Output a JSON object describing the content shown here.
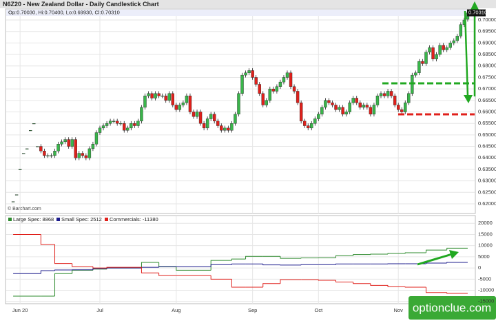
{
  "chart_data": [
    {
      "type": "candlestick",
      "title": "N6Z20 - New Zealand Dollar - Daily Candlestick Chart",
      "info": "Op:0.70030, Hi:0.70400, Lo:0.69930, Cl:0.70310",
      "last_price_label": "0.70310",
      "source": "© Barchart.com",
      "up_color": "#39b54a",
      "down_color": "#e0201b",
      "ylim": [
        0.617,
        0.7045
      ],
      "yticks": [
        {
          "value": 0.62,
          "label": "0.62000"
        },
        {
          "value": 0.625,
          "label": "0.62500"
        },
        {
          "value": 0.63,
          "label": "0.63000"
        },
        {
          "value": 0.635,
          "label": "0.63500"
        },
        {
          "value": 0.64,
          "label": "0.64000"
        },
        {
          "value": 0.645,
          "label": "0.64500"
        },
        {
          "value": 0.65,
          "label": "0.65000"
        },
        {
          "value": 0.655,
          "label": "0.65500"
        },
        {
          "value": 0.66,
          "label": "0.66000"
        },
        {
          "value": 0.665,
          "label": "0.66500"
        },
        {
          "value": 0.67,
          "label": "0.67000"
        },
        {
          "value": 0.675,
          "label": "0.67500"
        },
        {
          "value": 0.68,
          "label": "0.68000"
        },
        {
          "value": 0.685,
          "label": "0.68500"
        },
        {
          "value": 0.69,
          "label": "0.69000"
        },
        {
          "value": 0.695,
          "label": "0.69500"
        },
        {
          "value": 0.7,
          "label": "0.70000"
        }
      ],
      "grid": true,
      "candles": [
        [
          0.621,
          0.621,
          0.621,
          0.621
        ],
        [
          0.624,
          0.624,
          0.624,
          0.624
        ],
        [
          0.635,
          0.635,
          0.635,
          0.635
        ],
        [
          0.642,
          0.642,
          0.642,
          0.642
        ],
        [
          0.644,
          0.644,
          0.644,
          0.644
        ],
        [
          0.652,
          0.652,
          0.652,
          0.652
        ],
        [
          0.655,
          0.655,
          0.655,
          0.655
        ],
        [
          0.645,
          0.645,
          0.645,
          0.645
        ],
        [
          0.645,
          0.646,
          0.642,
          0.643
        ],
        [
          0.643,
          0.644,
          0.64,
          0.641
        ],
        [
          0.641,
          0.642,
          0.64,
          0.641
        ],
        [
          0.641,
          0.642,
          0.64,
          0.641
        ],
        [
          0.641,
          0.644,
          0.64,
          0.643
        ],
        [
          0.643,
          0.647,
          0.642,
          0.646
        ],
        [
          0.646,
          0.648,
          0.645,
          0.647
        ],
        [
          0.647,
          0.649,
          0.646,
          0.648
        ],
        [
          0.648,
          0.649,
          0.644,
          0.645
        ],
        [
          0.645,
          0.649,
          0.644,
          0.648
        ],
        [
          0.648,
          0.649,
          0.639,
          0.64
        ],
        [
          0.64,
          0.643,
          0.639,
          0.642
        ],
        [
          0.642,
          0.643,
          0.64,
          0.641
        ],
        [
          0.641,
          0.642,
          0.639,
          0.64
        ],
        [
          0.64,
          0.645,
          0.639,
          0.644
        ],
        [
          0.644,
          0.647,
          0.643,
          0.646
        ],
        [
          0.646,
          0.652,
          0.645,
          0.651
        ],
        [
          0.651,
          0.654,
          0.65,
          0.653
        ],
        [
          0.653,
          0.655,
          0.652,
          0.654
        ],
        [
          0.654,
          0.656,
          0.653,
          0.655
        ],
        [
          0.655,
          0.657,
          0.654,
          0.656
        ],
        [
          0.656,
          0.657,
          0.655,
          0.656
        ],
        [
          0.656,
          0.657,
          0.654,
          0.655
        ],
        [
          0.655,
          0.656,
          0.654,
          0.655
        ],
        [
          0.655,
          0.656,
          0.651,
          0.652
        ],
        [
          0.652,
          0.654,
          0.651,
          0.653
        ],
        [
          0.653,
          0.656,
          0.652,
          0.655
        ],
        [
          0.655,
          0.656,
          0.653,
          0.654
        ],
        [
          0.654,
          0.657,
          0.653,
          0.656
        ],
        [
          0.656,
          0.663,
          0.655,
          0.662
        ],
        [
          0.662,
          0.668,
          0.661,
          0.667
        ],
        [
          0.667,
          0.669,
          0.666,
          0.668
        ],
        [
          0.668,
          0.669,
          0.665,
          0.666
        ],
        [
          0.666,
          0.669,
          0.665,
          0.668
        ],
        [
          0.668,
          0.669,
          0.666,
          0.667
        ],
        [
          0.667,
          0.668,
          0.666,
          0.667
        ],
        [
          0.667,
          0.668,
          0.664,
          0.665
        ],
        [
          0.665,
          0.669,
          0.664,
          0.668
        ],
        [
          0.668,
          0.669,
          0.662,
          0.663
        ],
        [
          0.663,
          0.664,
          0.66,
          0.661
        ],
        [
          0.661,
          0.664,
          0.66,
          0.663
        ],
        [
          0.663,
          0.665,
          0.662,
          0.664
        ],
        [
          0.664,
          0.668,
          0.663,
          0.667
        ],
        [
          0.667,
          0.668,
          0.659,
          0.66
        ],
        [
          0.66,
          0.661,
          0.657,
          0.658
        ],
        [
          0.658,
          0.661,
          0.657,
          0.66
        ],
        [
          0.66,
          0.661,
          0.654,
          0.655
        ],
        [
          0.655,
          0.656,
          0.652,
          0.653
        ],
        [
          0.653,
          0.658,
          0.652,
          0.657
        ],
        [
          0.657,
          0.66,
          0.656,
          0.659
        ],
        [
          0.659,
          0.66,
          0.655,
          0.656
        ],
        [
          0.656,
          0.657,
          0.653,
          0.654
        ],
        [
          0.654,
          0.655,
          0.651,
          0.652
        ],
        [
          0.652,
          0.654,
          0.651,
          0.653
        ],
        [
          0.653,
          0.654,
          0.651,
          0.652
        ],
        [
          0.652,
          0.656,
          0.651,
          0.655
        ],
        [
          0.655,
          0.66,
          0.654,
          0.659
        ],
        [
          0.659,
          0.669,
          0.658,
          0.668
        ],
        [
          0.668,
          0.677,
          0.667,
          0.676
        ],
        [
          0.676,
          0.678,
          0.675,
          0.677
        ],
        [
          0.677,
          0.679,
          0.676,
          0.678
        ],
        [
          0.678,
          0.679,
          0.674,
          0.675
        ],
        [
          0.675,
          0.676,
          0.671,
          0.672
        ],
        [
          0.672,
          0.673,
          0.667,
          0.668
        ],
        [
          0.668,
          0.669,
          0.662,
          0.663
        ],
        [
          0.663,
          0.666,
          0.662,
          0.665
        ],
        [
          0.665,
          0.671,
          0.664,
          0.67
        ],
        [
          0.67,
          0.671,
          0.668,
          0.669
        ],
        [
          0.669,
          0.672,
          0.668,
          0.671
        ],
        [
          0.671,
          0.674,
          0.67,
          0.673
        ],
        [
          0.673,
          0.676,
          0.672,
          0.675
        ],
        [
          0.675,
          0.678,
          0.674,
          0.677
        ],
        [
          0.677,
          0.678,
          0.67,
          0.671
        ],
        [
          0.671,
          0.672,
          0.668,
          0.669
        ],
        [
          0.669,
          0.67,
          0.663,
          0.664
        ],
        [
          0.664,
          0.665,
          0.655,
          0.656
        ],
        [
          0.656,
          0.657,
          0.653,
          0.654
        ],
        [
          0.654,
          0.655,
          0.652,
          0.653
        ],
        [
          0.653,
          0.656,
          0.652,
          0.655
        ],
        [
          0.655,
          0.658,
          0.654,
          0.657
        ],
        [
          0.657,
          0.66,
          0.656,
          0.659
        ],
        [
          0.659,
          0.663,
          0.658,
          0.662
        ],
        [
          0.662,
          0.666,
          0.661,
          0.665
        ],
        [
          0.665,
          0.666,
          0.663,
          0.664
        ],
        [
          0.664,
          0.665,
          0.662,
          0.663
        ],
        [
          0.663,
          0.664,
          0.66,
          0.661
        ],
        [
          0.661,
          0.663,
          0.66,
          0.662
        ],
        [
          0.662,
          0.663,
          0.658,
          0.659
        ],
        [
          0.659,
          0.661,
          0.658,
          0.66
        ],
        [
          0.66,
          0.665,
          0.659,
          0.664
        ],
        [
          0.664,
          0.667,
          0.663,
          0.666
        ],
        [
          0.666,
          0.667,
          0.663,
          0.664
        ],
        [
          0.664,
          0.665,
          0.661,
          0.662
        ],
        [
          0.662,
          0.664,
          0.661,
          0.663
        ],
        [
          0.663,
          0.664,
          0.661,
          0.662
        ],
        [
          0.662,
          0.663,
          0.658,
          0.659
        ],
        [
          0.659,
          0.664,
          0.658,
          0.663
        ],
        [
          0.663,
          0.668,
          0.662,
          0.667
        ],
        [
          0.667,
          0.669,
          0.666,
          0.668
        ],
        [
          0.668,
          0.669,
          0.666,
          0.667
        ],
        [
          0.667,
          0.67,
          0.666,
          0.669
        ],
        [
          0.669,
          0.67,
          0.666,
          0.667
        ],
        [
          0.667,
          0.668,
          0.662,
          0.663
        ],
        [
          0.663,
          0.664,
          0.66,
          0.661
        ],
        [
          0.661,
          0.662,
          0.659,
          0.66
        ],
        [
          0.66,
          0.665,
          0.659,
          0.664
        ],
        [
          0.664,
          0.669,
          0.663,
          0.668
        ],
        [
          0.668,
          0.677,
          0.667,
          0.676
        ],
        [
          0.676,
          0.678,
          0.675,
          0.677
        ],
        [
          0.677,
          0.683,
          0.676,
          0.682
        ],
        [
          0.682,
          0.683,
          0.68,
          0.681
        ],
        [
          0.681,
          0.687,
          0.68,
          0.686
        ],
        [
          0.686,
          0.689,
          0.685,
          0.688
        ],
        [
          0.688,
          0.689,
          0.682,
          0.683
        ],
        [
          0.683,
          0.686,
          0.682,
          0.685
        ],
        [
          0.685,
          0.69,
          0.684,
          0.689
        ],
        [
          0.689,
          0.69,
          0.686,
          0.687
        ],
        [
          0.687,
          0.689,
          0.686,
          0.688
        ],
        [
          0.688,
          0.691,
          0.687,
          0.69
        ],
        [
          0.69,
          0.692,
          0.689,
          0.691
        ],
        [
          0.691,
          0.694,
          0.69,
          0.693
        ],
        [
          0.693,
          0.699,
          0.692,
          0.698
        ],
        [
          0.698,
          0.701,
          0.697,
          0.7
        ],
        [
          0.7003,
          0.704,
          0.6993,
          0.7031
        ]
      ]
    },
    {
      "type": "step",
      "xlim": [
        -2,
        133
      ],
      "ylim": [
        -16000,
        21000
      ],
      "yticks": [
        20000,
        15000,
        10000,
        5000,
        0,
        -5000,
        -10000,
        -15000
      ],
      "grid": true,
      "xticks": [
        {
          "value": 2,
          "label": "Jun 20"
        },
        {
          "value": 25,
          "label": "Jul"
        },
        {
          "value": 47,
          "label": "Aug"
        },
        {
          "value": 69,
          "label": "Sep"
        },
        {
          "value": 88,
          "label": "Oct"
        },
        {
          "value": 111,
          "label": "Nov"
        }
      ],
      "x": [
        0,
        8,
        12,
        17,
        23,
        27,
        37,
        42,
        47,
        57,
        63,
        67,
        72,
        77,
        83,
        88,
        93,
        98,
        103,
        108,
        113,
        119,
        125
      ],
      "series": [
        {
          "name": "Large Spec: 8868",
          "color": "#2e8b2e",
          "values": [
            -12600,
            -12600,
            -2500,
            -1000,
            -500,
            0,
            2500,
            500,
            -1000,
            3400,
            4000,
            5200,
            5200,
            4300,
            4500,
            4600,
            5500,
            6000,
            6200,
            6500,
            6800,
            8000,
            8868
          ]
        },
        {
          "name": "Small Spec: 2512",
          "color": "#1c1c8c",
          "values": [
            -2500,
            -1200,
            -900,
            -800,
            -300,
            0,
            300,
            600,
            600,
            1500,
            1800,
            1800,
            1400,
            1300,
            1500,
            1500,
            1800,
            1800,
            1800,
            1900,
            1900,
            2200,
            2512
          ]
        },
        {
          "name": "Commercials: -11380",
          "color": "#e0201b",
          "values": [
            15000,
            10500,
            2000,
            600,
            0,
            300,
            -2200,
            -3400,
            -3400,
            -5000,
            -8600,
            -8600,
            -7000,
            -5200,
            -5200,
            -5500,
            -6300,
            -7000,
            -7800,
            -8400,
            -8600,
            -11000,
            -11380
          ]
        }
      ]
    }
  ],
  "watermark": "optionclue.com"
}
